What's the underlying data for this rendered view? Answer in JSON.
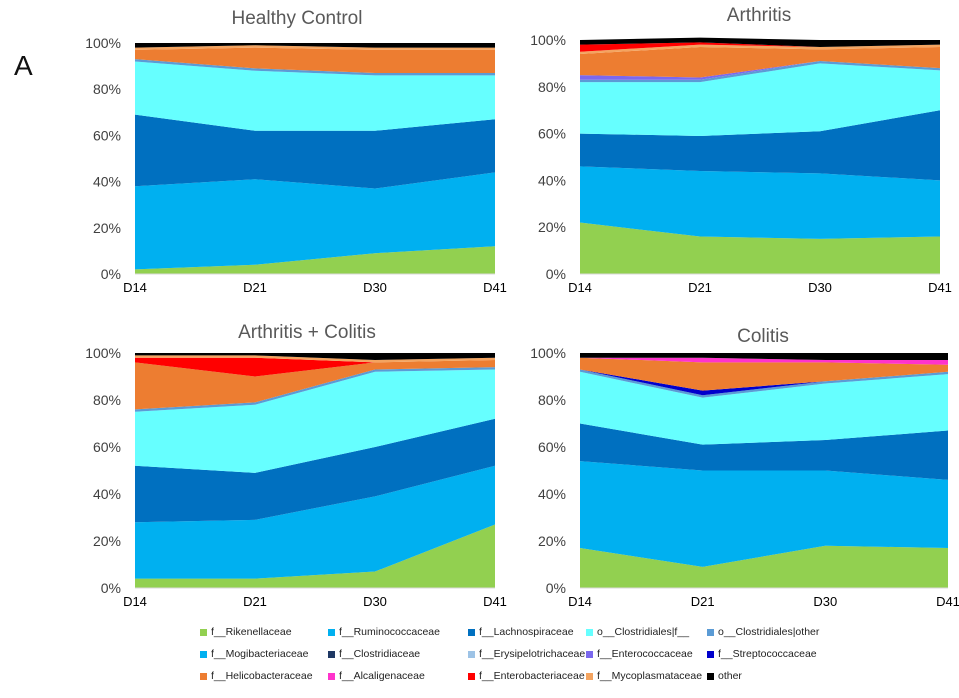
{
  "panel_label": "A",
  "colors": {
    "f__Rikenellaceae": "#92d050",
    "f__Ruminococcaceae": "#00b0f0",
    "f__Lachnospiraceae": "#0070c0",
    "o__Clostridiales|f__": "#66ffff",
    "o__Clostridiales|other": "#5b9bd5",
    "f__Mogibacteriaceae": "#00b0f0",
    "f__Clostridiaceae": "#1f3864",
    "f__Erysipelotrichaceae": "#9dc3e6",
    "f__Enterococcaceae": "#7b68ee",
    "f__Streptococcaceae": "#0000cc",
    "f__Helicobacteraceae": "#ed7d31",
    "f__Alcaligenaceae": "#ff33cc",
    "f__Enterobacteriaceae": "#ff0000",
    "f__Mycoplasmataceae": "#f4a460",
    "other": "#000000"
  },
  "legend": {
    "rows": [
      [
        "f__Rikenellaceae",
        "f__Ruminococcaceae",
        "f__Lachnospiraceae",
        "o__Clostridiales|f__",
        "o__Clostridiales|other"
      ],
      [
        "f__Mogibacteriaceae",
        "f__Clostridiaceae",
        "f__Erysipelotrichaceae",
        "f__Enterococcaceae",
        "f__Streptococcaceae"
      ],
      [
        "f__Helicobacteraceae",
        "f__Alcaligenaceae",
        "f__Enterobacteriaceae",
        "f__Mycoplasmataceae",
        "other"
      ]
    ]
  },
  "chart_data": [
    {
      "type": "area",
      "title": "Healthy Control",
      "categories": [
        "D14",
        "D21",
        "D30",
        "D41"
      ],
      "ylim": [
        0,
        100
      ],
      "yticks": [
        "0%",
        "20%",
        "40%",
        "60%",
        "80%",
        "100%"
      ],
      "series": [
        {
          "name": "f__Rikenellaceae",
          "values": [
            2,
            4,
            9,
            12
          ]
        },
        {
          "name": "f__Ruminococcaceae",
          "values": [
            36,
            37,
            28,
            32
          ]
        },
        {
          "name": "f__Lachnospiraceae",
          "values": [
            31,
            21,
            25,
            23
          ]
        },
        {
          "name": "o__Clostridiales|f__",
          "values": [
            23,
            26,
            24,
            19
          ]
        },
        {
          "name": "o__Clostridiales|other",
          "values": [
            1,
            1,
            1,
            1
          ]
        },
        {
          "name": "f__Helicobacteraceae",
          "values": [
            4,
            9,
            10,
            10
          ]
        },
        {
          "name": "f__Mycoplasmataceae",
          "values": [
            1,
            1,
            1,
            1
          ]
        },
        {
          "name": "other",
          "values": [
            2,
            1,
            2,
            2
          ]
        }
      ]
    },
    {
      "type": "area",
      "title": "Arthritis",
      "categories": [
        "D14",
        "D21",
        "D30",
        "D41"
      ],
      "ylim": [
        0,
        100
      ],
      "yticks": [
        "0%",
        "20%",
        "40%",
        "60%",
        "80%",
        "100%"
      ],
      "series": [
        {
          "name": "f__Rikenellaceae",
          "values": [
            22,
            16,
            15,
            16
          ]
        },
        {
          "name": "f__Ruminococcaceae",
          "values": [
            24,
            28,
            28,
            24
          ]
        },
        {
          "name": "f__Lachnospiraceae",
          "values": [
            14,
            15,
            18,
            30
          ]
        },
        {
          "name": "o__Clostridiales|f__",
          "values": [
            22,
            23,
            29,
            17
          ]
        },
        {
          "name": "o__Clostridiales|other",
          "values": [
            1,
            1,
            1,
            1
          ]
        },
        {
          "name": "f__Enterococcaceae",
          "values": [
            2,
            1,
            0,
            0
          ]
        },
        {
          "name": "f__Helicobacteraceae",
          "values": [
            9,
            13,
            5,
            9
          ]
        },
        {
          "name": "f__Mycoplasmataceae",
          "values": [
            1,
            1,
            1,
            1
          ]
        },
        {
          "name": "f__Enterobacteriaceae",
          "values": [
            3,
            1,
            0,
            0
          ]
        },
        {
          "name": "other",
          "values": [
            2,
            2,
            3,
            2
          ]
        }
      ]
    },
    {
      "type": "area",
      "title": "Arthritis + Colitis",
      "categories": [
        "D14",
        "D21",
        "D30",
        "D41"
      ],
      "ylim": [
        0,
        100
      ],
      "yticks": [
        "0%",
        "20%",
        "40%",
        "60%",
        "80%",
        "100%"
      ],
      "series": [
        {
          "name": "f__Rikenellaceae",
          "values": [
            4,
            4,
            7,
            27
          ]
        },
        {
          "name": "f__Ruminococcaceae",
          "values": [
            24,
            25,
            32,
            25
          ]
        },
        {
          "name": "f__Lachnospiraceae",
          "values": [
            24,
            20,
            21,
            20
          ]
        },
        {
          "name": "o__Clostridiales|f__",
          "values": [
            23,
            29,
            32,
            21
          ]
        },
        {
          "name": "o__Clostridiales|other",
          "values": [
            1,
            1,
            1,
            1
          ]
        },
        {
          "name": "f__Helicobacteraceae",
          "values": [
            20,
            11,
            3,
            3
          ]
        },
        {
          "name": "f__Enterobacteriaceae",
          "values": [
            2,
            8,
            0,
            0
          ]
        },
        {
          "name": "f__Mycoplasmataceae",
          "values": [
            1,
            1,
            1,
            1
          ]
        },
        {
          "name": "other",
          "values": [
            1,
            1,
            3,
            2
          ]
        }
      ]
    },
    {
      "type": "area",
      "title": "Colitis",
      "categories": [
        "D14",
        "D21",
        "D30",
        "D41"
      ],
      "ylim": [
        0,
        100
      ],
      "yticks": [
        "0%",
        "20%",
        "40%",
        "60%",
        "80%",
        "100%"
      ],
      "series": [
        {
          "name": "f__Rikenellaceae",
          "values": [
            17,
            9,
            18,
            17
          ]
        },
        {
          "name": "f__Ruminococcaceae",
          "values": [
            37,
            41,
            32,
            29
          ]
        },
        {
          "name": "f__Lachnospiraceae",
          "values": [
            16,
            11,
            13,
            21
          ]
        },
        {
          "name": "o__Clostridiales|f__",
          "values": [
            22,
            20,
            24,
            24
          ]
        },
        {
          "name": "o__Clostridiales|other",
          "values": [
            1,
            1,
            1,
            1
          ]
        },
        {
          "name": "f__Streptococcaceae",
          "values": [
            0,
            2,
            0,
            0
          ]
        },
        {
          "name": "f__Helicobacteraceae",
          "values": [
            5,
            12,
            8,
            3
          ]
        },
        {
          "name": "f__Alcaligenaceae",
          "values": [
            0,
            2,
            1,
            2
          ]
        },
        {
          "name": "other",
          "values": [
            2,
            2,
            3,
            3
          ]
        }
      ]
    }
  ]
}
